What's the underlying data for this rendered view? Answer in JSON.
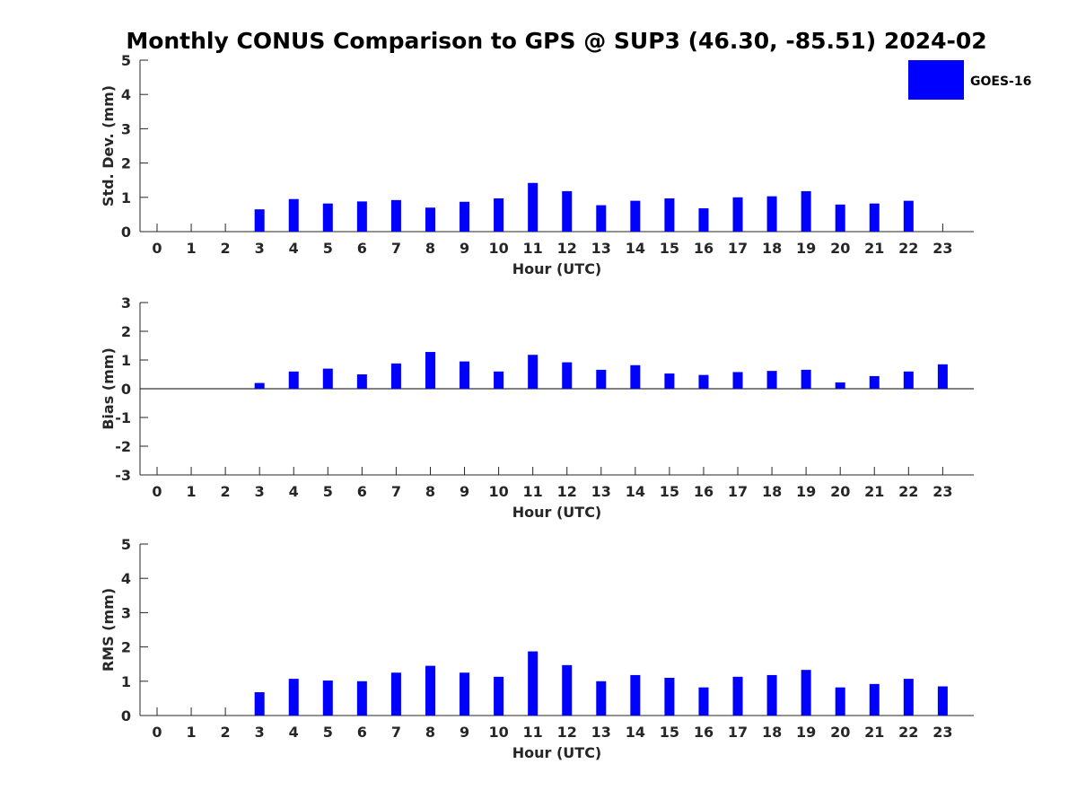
{
  "title": "Monthly CONUS Comparison to GPS @ SUP3 (46.30, -85.51) 2024-02",
  "legend": {
    "label": "GOES-16",
    "color": "#0000ff",
    "placement": "top-right"
  },
  "chart_data": [
    {
      "type": "bar",
      "name": "std-dev",
      "ylabel": "Std. Dev. (mm)",
      "xlabel": "Hour (UTC)",
      "ylim": [
        0,
        5
      ],
      "yticks": [
        0,
        1,
        2,
        3,
        4,
        5
      ],
      "categories": [
        0,
        1,
        2,
        3,
        4,
        5,
        6,
        7,
        8,
        9,
        10,
        11,
        12,
        13,
        14,
        15,
        16,
        17,
        18,
        19,
        20,
        21,
        22,
        23
      ],
      "series": [
        {
          "name": "GOES-16",
          "color": "#0000ff",
          "values": [
            null,
            null,
            null,
            0.65,
            0.95,
            0.82,
            0.88,
            0.92,
            0.7,
            0.87,
            0.97,
            1.42,
            1.18,
            0.77,
            0.9,
            0.97,
            0.68,
            1.0,
            1.03,
            1.18,
            0.79,
            0.82,
            0.9,
            null
          ]
        }
      ],
      "xticklabels": [
        "0",
        "1",
        "2",
        "3",
        "4",
        "5",
        "6",
        "7",
        "8",
        "9",
        "10",
        "11",
        "12",
        "13",
        "14",
        "15",
        "16",
        "17",
        "18",
        "19",
        "20",
        "21",
        "22",
        "23"
      ],
      "yticklabels": [
        "0",
        "1",
        "2",
        "3",
        "4",
        "5"
      ]
    },
    {
      "type": "bar",
      "name": "bias",
      "ylabel": "Bias (mm)",
      "xlabel": "Hour (UTC)",
      "ylim": [
        -3,
        3
      ],
      "yticks": [
        -3,
        -2,
        -1,
        0,
        1,
        2,
        3
      ],
      "categories": [
        0,
        1,
        2,
        3,
        4,
        5,
        6,
        7,
        8,
        9,
        10,
        11,
        12,
        13,
        14,
        15,
        16,
        17,
        18,
        19,
        20,
        21,
        22,
        23
      ],
      "series": [
        {
          "name": "GOES-16",
          "color": "#0000ff",
          "values": [
            null,
            null,
            null,
            0.2,
            0.6,
            0.7,
            0.5,
            0.88,
            1.28,
            0.95,
            0.6,
            1.18,
            0.92,
            0.66,
            0.82,
            0.53,
            0.48,
            0.58,
            0.62,
            0.66,
            0.22,
            0.44,
            0.6,
            0.85
          ]
        }
      ],
      "xticklabels": [
        "0",
        "1",
        "2",
        "3",
        "4",
        "5",
        "6",
        "7",
        "8",
        "9",
        "10",
        "11",
        "12",
        "13",
        "14",
        "15",
        "16",
        "17",
        "18",
        "19",
        "20",
        "21",
        "22",
        "23"
      ],
      "yticklabels": [
        "-3",
        "-2",
        "-1",
        "0",
        "1",
        "2",
        "3"
      ]
    },
    {
      "type": "bar",
      "name": "rms",
      "ylabel": "RMS (mm)",
      "xlabel": "Hour (UTC)",
      "ylim": [
        0,
        5
      ],
      "yticks": [
        0,
        1,
        2,
        3,
        4,
        5
      ],
      "categories": [
        0,
        1,
        2,
        3,
        4,
        5,
        6,
        7,
        8,
        9,
        10,
        11,
        12,
        13,
        14,
        15,
        16,
        17,
        18,
        19,
        20,
        21,
        22,
        23
      ],
      "series": [
        {
          "name": "GOES-16",
          "color": "#0000ff",
          "values": [
            null,
            null,
            null,
            0.68,
            1.07,
            1.02,
            1.0,
            1.25,
            1.45,
            1.25,
            1.13,
            1.87,
            1.47,
            1.0,
            1.18,
            1.1,
            0.82,
            1.13,
            1.18,
            1.33,
            0.82,
            0.92,
            1.07,
            0.85
          ]
        }
      ],
      "xticklabels": [
        "0",
        "1",
        "2",
        "3",
        "4",
        "5",
        "6",
        "7",
        "8",
        "9",
        "10",
        "11",
        "12",
        "13",
        "14",
        "15",
        "16",
        "17",
        "18",
        "19",
        "20",
        "21",
        "22",
        "23"
      ],
      "yticklabels": [
        "0",
        "1",
        "2",
        "3",
        "4",
        "5"
      ]
    }
  ]
}
